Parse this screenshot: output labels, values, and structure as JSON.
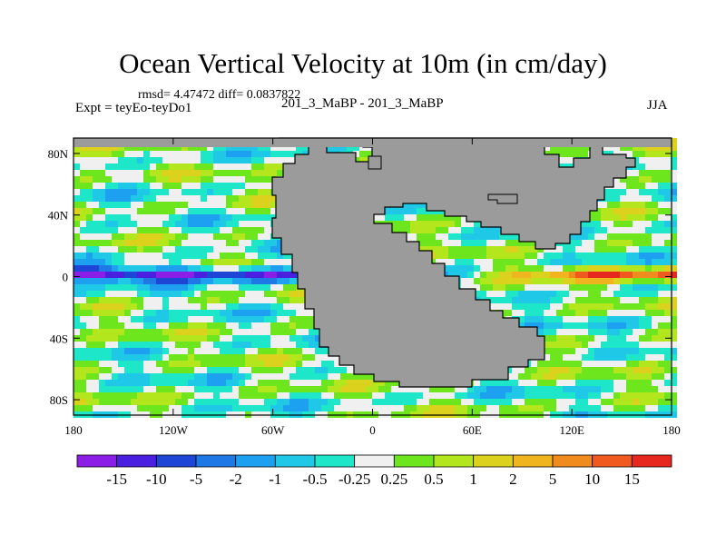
{
  "title": "Ocean Vertical Velocity at 10m (in cm/day)",
  "stats": "rmsd= 4.47472 diff= 0.0837822",
  "experiment": "Expt = teyEo-teyDo1",
  "center_label": "201_3_MaBP - 201_3_MaBP",
  "season": "JJA",
  "map": {
    "lon_range": [
      -180,
      180
    ],
    "lat_range": [
      -90,
      90
    ],
    "land_color": "#9b9b9b",
    "y_ticks": [
      {
        "lat": 80,
        "label": "80N"
      },
      {
        "lat": 40,
        "label": "40N"
      },
      {
        "lat": 0,
        "label": "0"
      },
      {
        "lat": -40,
        "label": "40S"
      },
      {
        "lat": -80,
        "label": "80S"
      }
    ],
    "x_ticks": [
      {
        "lon": -180,
        "label": "180"
      },
      {
        "lon": -120,
        "label": "120W"
      },
      {
        "lon": -60,
        "label": "60W"
      },
      {
        "lon": 0,
        "label": "0"
      },
      {
        "lon": 60,
        "label": "60E"
      },
      {
        "lon": 120,
        "label": "120E"
      },
      {
        "lon": 180,
        "label": "180"
      }
    ]
  },
  "colorbar": {
    "colors": [
      "#8a1ee6",
      "#4b1fe0",
      "#1e46d6",
      "#1e78e6",
      "#1ea0f0",
      "#1ec8e6",
      "#1ee6c8",
      "#f0f0f0",
      "#6ee61e",
      "#b4e61e",
      "#dcd21e",
      "#f0b41e",
      "#f08c1e",
      "#f05a1e",
      "#e6281e"
    ],
    "labels": [
      "-15",
      "-10",
      "-5",
      "-2",
      "-1",
      "-0.5",
      "-0.25",
      "0.25",
      "0.5",
      "1",
      "2",
      "5",
      "10",
      "15"
    ]
  }
}
